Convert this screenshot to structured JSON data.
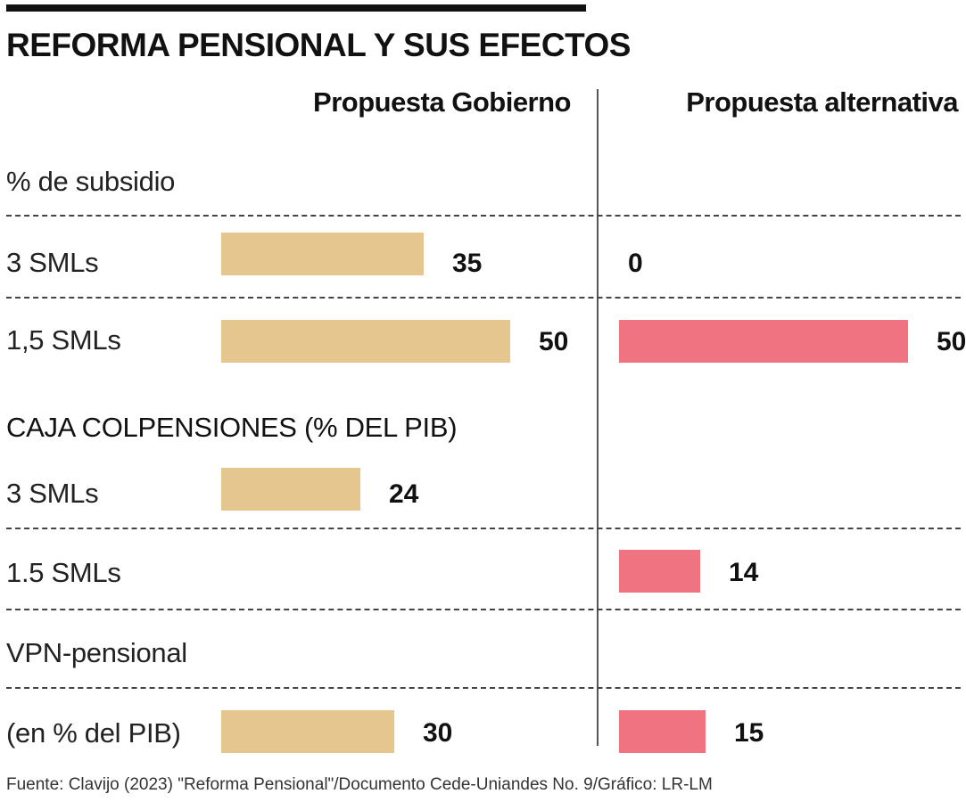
{
  "title": "REFORMA PENSIONAL Y SUS EFECTOS",
  "columns": {
    "gov": "Propuesta Gobierno",
    "alt": "Propuesta alternativa"
  },
  "colors": {
    "gov": "#e6c68f",
    "alt": "#f07382"
  },
  "sections": {
    "subsidio": "% de subsidio",
    "caja": "CAJA COLPENSIONES (% DEL PIB)",
    "vpn": "VPN-pensional"
  },
  "rows": [
    {
      "label": "3 SMLs",
      "gov": 35,
      "alt": 0
    },
    {
      "label": "1,5 SMLs",
      "gov": 50,
      "alt": 50
    },
    {
      "label": "3 SMLs",
      "gov": 24,
      "alt": null
    },
    {
      "label": "1.5 SMLs",
      "gov": null,
      "alt": 14
    },
    {
      "label": "(en % del PIB)",
      "gov": 30,
      "alt": 15
    }
  ],
  "chart_data": {
    "type": "bar",
    "title": "REFORMA PENSIONAL Y SUS EFECTOS",
    "categories": [
      "% de subsidio - 3 SMLs",
      "% de subsidio - 1,5 SMLs",
      "Caja Colpensiones (% del PIB) - 3 SMLs",
      "Caja Colpensiones (% del PIB) - 1.5 SMLs",
      "VPN-pensional (en % del PIB)"
    ],
    "series": [
      {
        "name": "Propuesta Gobierno",
        "values": [
          35,
          50,
          24,
          null,
          30
        ]
      },
      {
        "name": "Propuesta alternativa",
        "values": [
          0,
          50,
          null,
          14,
          15
        ]
      }
    ],
    "xlabel": "",
    "ylabel": "",
    "ylim": [
      0,
      50
    ]
  },
  "source": "Fuente: Clavijo (2023) \"Reforma Pensional\"/Documento Cede-Uniandes No. 9/Gráfico: LR-LM"
}
